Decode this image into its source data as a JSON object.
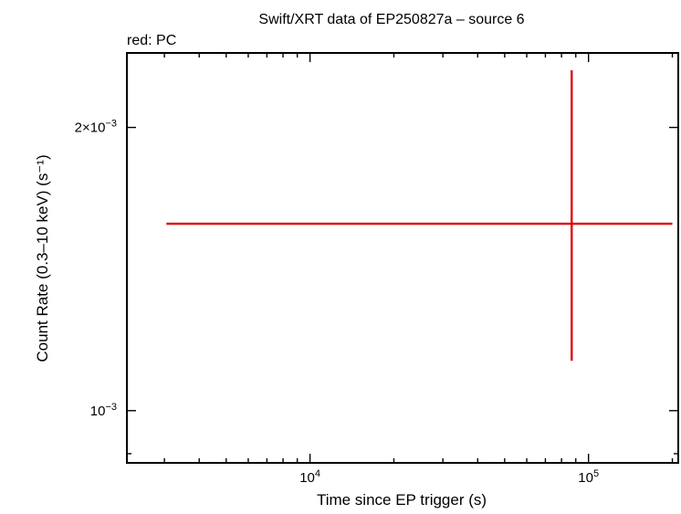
{
  "chart_data": {
    "type": "scatter",
    "title": "Swift/XRT data of EP250827a – source 6",
    "subtitle": "red: PC",
    "xlabel": "Time since EP trigger (s)",
    "ylabel": "Count Rate (0.3–10 keV) (s⁻¹)",
    "x_scale": "log",
    "y_scale": "log",
    "xlim": [
      2200,
      210000
    ],
    "ylim": [
      0.00088,
      0.0024
    ],
    "grid": false,
    "x_tick_labels": [
      {
        "value": 10000,
        "base": "10",
        "exp": "4"
      },
      {
        "value": 100000,
        "base": "10",
        "exp": "5"
      }
    ],
    "y_tick_labels": [
      {
        "value": 0.002,
        "base": "2×10",
        "exp": "−3"
      },
      {
        "value": 0.001,
        "base": "10",
        "exp": "−3"
      }
    ],
    "series": [
      {
        "name": "PC",
        "color": "#e00000",
        "points": [
          {
            "x": 87000,
            "x_lo": 3050,
            "x_hi": 200000,
            "y": 0.00158,
            "y_lo": 0.00113,
            "y_hi": 0.0023
          }
        ]
      }
    ]
  }
}
